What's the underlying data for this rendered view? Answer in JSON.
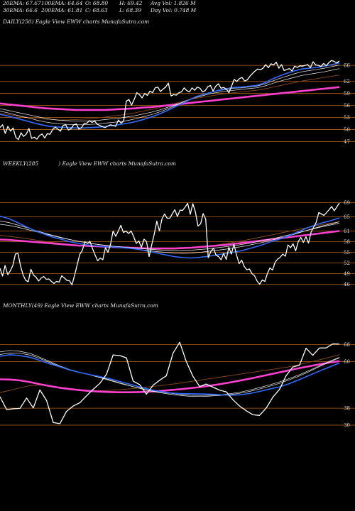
{
  "header": {
    "ema20": "20EMA: 67.67",
    "ema100": "100EMA: 64.64",
    "open": "O: 68.80",
    "high": "H: 69.42",
    "avg_vol": "Avg Vol: 1.826  M",
    "ema30": "30EMA: 66.6",
    "ema200": "200EMA: 61.81",
    "close": "C: 68.63",
    "low": "L: 68.39",
    "day_vol": "Day Vol: 0.748 M"
  },
  "panels": {
    "daily": "DAILY(250) Eagle   View  EWW charts MunafaSutra.com",
    "weekly_a": "WEEKLY(285",
    "weekly_b": ") Eagle   View  EWW charts MunafaSutra.com",
    "monthly": "MONTHLY(49) Eagle   View  EWW charts MunafaSutra.com"
  },
  "colors": {
    "background": "#000000",
    "price": "#ffffff",
    "ema_fast": "#2f6bff",
    "ema_slow": "#ff3fd0",
    "ema_white": "#f0f0f0",
    "ema_brown": "#8b4a1c",
    "gridline": "#b5651d"
  },
  "chart_data": [
    {
      "type": "line",
      "name": "daily",
      "yticks": [
        66,
        62,
        59,
        56,
        53,
        50,
        47
      ],
      "ylim": [
        45.5,
        68.5
      ],
      "series": [
        {
          "name": "price",
          "values": [
            50.5,
            51.2,
            49.0,
            50.8,
            49.6,
            50.4,
            48.1,
            47.5,
            49.2,
            48.3,
            48.9,
            50.3,
            47.8,
            48.1,
            47.6,
            48.5,
            48.9,
            47.9,
            49.0,
            48.8,
            50.0,
            50.6,
            50.1,
            49.6,
            51.0,
            51.2,
            49.9,
            50.2,
            51.2,
            51.4,
            50.1,
            50.5,
            51.5,
            51.6,
            52.2,
            51.8,
            52.1,
            51.3,
            51.0,
            50.7,
            50.5,
            50.9,
            51.2,
            51.0,
            50.8,
            52.4,
            51.6,
            52.1,
            57.1,
            57.5,
            56.1,
            57.5,
            59.2,
            58.7,
            57.9,
            59.0,
            58.5,
            59.6,
            59.2,
            60.4,
            60.6,
            59.5,
            60.1,
            60.6,
            61.6,
            58.4,
            58.7,
            58.6,
            59.2,
            59.4,
            60.4,
            59.7,
            59.4,
            60.4,
            59.8,
            60.6,
            60.3,
            59.4,
            59.7,
            60.7,
            61.0,
            59.6,
            60.8,
            61.4,
            60.3,
            60.5,
            60.1,
            59.2,
            60.8,
            62.5,
            62.0,
            62.7,
            63.0,
            62.1,
            62.4,
            63.3,
            64.0,
            64.6,
            65.1,
            64.9,
            65.3,
            66.2,
            65.4,
            66.4,
            66.1,
            66.8,
            65.3,
            66.2,
            64.7,
            65.0,
            65.2,
            64.6,
            65.8,
            65.5,
            65.9,
            65.8,
            66.0,
            66.2,
            65.4,
            66.9,
            66.1,
            66.0,
            65.7,
            66.5,
            65.9,
            66.7,
            67.2,
            67.0,
            66.6,
            67.1
          ]
        },
        {
          "name": "ema_fast",
          "values": [
            53.8,
            53.4,
            52.9,
            52.4,
            51.9,
            51.4,
            51.0,
            50.7,
            50.6,
            50.5,
            50.4,
            50.4,
            50.5,
            50.6,
            50.8,
            51.0,
            51.3,
            51.6,
            52.0,
            52.5,
            53.1,
            53.8,
            54.6,
            55.5,
            56.4,
            57.3,
            58.2,
            58.8,
            59.3,
            59.8,
            60.2,
            60.5,
            60.6,
            60.8,
            61.0,
            61.6,
            62.5,
            63.3,
            64.0,
            64.6,
            65.1,
            65.3,
            65.5,
            65.8,
            66.2,
            66.6
          ]
        },
        {
          "name": "ema_white_1",
          "values": [
            54.6,
            54.2,
            53.7,
            53.2,
            52.8,
            52.3,
            51.9,
            51.6,
            51.4,
            51.3,
            51.2,
            51.2,
            51.3,
            51.4,
            51.6,
            51.8,
            52.0,
            52.3,
            52.7,
            53.2,
            53.7,
            54.3,
            55.0,
            55.8,
            56.6,
            57.4,
            58.2,
            58.8,
            59.3,
            59.7,
            60.0,
            60.3,
            60.4,
            60.6,
            60.8,
            61.3,
            62.0,
            62.7,
            63.3,
            63.9,
            64.4,
            64.7,
            65.0,
            65.3,
            65.7,
            66.1
          ]
        },
        {
          "name": "ema_white_2",
          "values": [
            55.2,
            54.8,
            54.4,
            54.0,
            53.6,
            53.2,
            52.8,
            52.5,
            52.3,
            52.2,
            52.1,
            52.1,
            52.2,
            52.3,
            52.5,
            52.7,
            52.9,
            53.2,
            53.5,
            53.9,
            54.3,
            54.8,
            55.4,
            56.0,
            56.7,
            57.4,
            58.0,
            58.5,
            59.0,
            59.3,
            59.6,
            59.8,
            60.0,
            60.2,
            60.4,
            60.8,
            61.4,
            62.0,
            62.5,
            63.0,
            63.5,
            63.8,
            64.1,
            64.4,
            64.8,
            65.2
          ]
        },
        {
          "name": "ema_brown",
          "values": [
            54.0,
            53.8,
            53.5,
            53.2,
            53.0,
            52.8,
            52.6,
            52.5,
            52.4,
            52.4,
            52.5,
            52.6,
            52.7,
            52.9,
            53.1,
            53.4,
            53.6,
            53.9,
            54.2,
            54.6,
            55.0,
            55.4,
            55.9,
            56.4,
            56.9,
            57.4,
            57.8,
            58.1,
            58.4,
            58.7,
            59.0,
            59.2,
            59.4,
            59.6,
            59.8,
            60.1,
            60.5,
            60.9,
            61.3,
            61.7,
            62.1,
            62.4,
            62.7,
            63.0,
            63.3,
            63.6
          ]
        },
        {
          "name": "ema_slow",
          "values": [
            56.5,
            56.3,
            56.1,
            55.9,
            55.7,
            55.5,
            55.3,
            55.2,
            55.1,
            55.0,
            54.9,
            54.9,
            54.9,
            54.9,
            54.9,
            55.0,
            55.1,
            55.2,
            55.3,
            55.5,
            55.6,
            55.8,
            56.0,
            56.2,
            56.4,
            56.6,
            56.8,
            57.0,
            57.2,
            57.4,
            57.6,
            57.8,
            58.0,
            58.2,
            58.4,
            58.6,
            58.8,
            59.0,
            59.2,
            59.4,
            59.6,
            59.8,
            60.0,
            60.2,
            60.4,
            60.6
          ]
        }
      ]
    },
    {
      "type": "line",
      "name": "weekly",
      "yticks": [
        69,
        65,
        61,
        58,
        55,
        52,
        49,
        46
      ],
      "ylim": [
        44.5,
        70.5
      ],
      "series": [
        {
          "name": "price",
          "values": [
            50.5,
            48.3,
            51.3,
            48.7,
            49.8,
            51.3,
            54.5,
            54.7,
            51.1,
            48.6,
            47.1,
            46.7,
            50.2,
            48.6,
            48.0,
            46.9,
            47.7,
            48.2,
            47.4,
            47.5,
            46.8,
            46.2,
            46.8,
            46.6,
            48.4,
            47.8,
            47.1,
            47.0,
            45.8,
            48.5,
            51.4,
            54.4,
            55.5,
            58.0,
            57.5,
            58.1,
            56.0,
            54.2,
            52.6,
            53.4,
            52.9,
            56.3,
            55.0,
            57.3,
            61.0,
            59.5,
            61.0,
            62.6,
            60.6,
            61.0,
            60.3,
            61.0,
            59.4,
            57.5,
            58.2,
            56.4,
            58.7,
            58.0,
            53.8,
            57.1,
            60.2,
            63.8,
            61.0,
            64.4,
            65.8,
            64.6,
            64.6,
            65.8,
            67.0,
            65.1,
            66.9,
            66.8,
            67.7,
            68.8,
            65.7,
            68.7,
            66.4,
            62.4,
            63.0,
            65.9,
            64.4,
            53.5,
            55.2,
            56.2,
            54.2,
            53.8,
            52.9,
            54.7,
            53.0,
            56.4,
            54.5,
            57.3,
            54.2,
            51.8,
            52.8,
            51.0,
            50.1,
            50.3,
            49.0,
            48.4,
            46.9,
            46.0,
            47.2,
            46.8,
            49.0,
            50.6,
            50.0,
            52.2,
            53.1,
            53.6,
            54.5,
            53.9,
            57.1,
            56.3,
            57.4,
            55.4,
            58.0,
            59.2,
            57.8,
            59.4,
            57.6,
            60.7,
            62.1,
            63.5,
            66.2,
            65.8,
            65.4,
            66.2,
            67.0,
            67.9,
            66.7,
            67.8,
            68.9
          ]
        },
        {
          "name": "ema_fast",
          "values": [
            65.2,
            64.5,
            63.4,
            62.2,
            61.1,
            60.2,
            59.3,
            58.7,
            58.0,
            57.5,
            57.1,
            56.8,
            56.6,
            56.5,
            56.3,
            56.1,
            55.8,
            55.3,
            54.8,
            54.3,
            53.8,
            53.5,
            53.4,
            53.6,
            53.9,
            54.3,
            54.7,
            55.1,
            55.6,
            56.3,
            57.0,
            57.9,
            58.6,
            59.5,
            60.5,
            61.6,
            62.5,
            63.3,
            63.9,
            64.7
          ]
        },
        {
          "name": "ema_white_1",
          "values": [
            63.8,
            63.4,
            62.7,
            62.0,
            61.2,
            60.5,
            59.8,
            59.2,
            58.6,
            58.1,
            57.7,
            57.3,
            57.0,
            56.7,
            56.4,
            56.1,
            55.8,
            55.5,
            55.2,
            55.0,
            54.8,
            54.7,
            54.8,
            55.0,
            55.3,
            55.6,
            55.9,
            56.3,
            56.7,
            57.2,
            57.7,
            58.3,
            58.9,
            59.5,
            60.2,
            61.0,
            61.7,
            62.4,
            63.0,
            63.6
          ]
        },
        {
          "name": "ema_white_2",
          "values": [
            62.9,
            62.6,
            62.1,
            61.5,
            60.9,
            60.3,
            59.7,
            59.1,
            58.6,
            58.1,
            57.7,
            57.3,
            57.0,
            56.7,
            56.5,
            56.3,
            56.1,
            55.9,
            55.7,
            55.6,
            55.5,
            55.5,
            55.6,
            55.8,
            56.0,
            56.3,
            56.6,
            56.9,
            57.3,
            57.7,
            58.2,
            58.7,
            59.2,
            59.8,
            60.4,
            61.0,
            61.6,
            62.2,
            62.7,
            63.2
          ]
        },
        {
          "name": "ema_brown",
          "values": [
            59.8,
            59.5,
            59.2,
            58.9,
            58.5,
            58.1,
            57.8,
            57.5,
            57.2,
            57.0,
            56.8,
            56.6,
            56.5,
            56.4,
            56.3,
            56.2,
            56.1,
            56.0,
            55.9,
            55.9,
            55.9,
            56.0,
            56.2,
            56.5,
            56.8,
            57.1,
            57.5,
            57.9,
            58.3,
            58.8,
            59.3,
            59.8,
            60.3,
            60.8,
            61.3,
            61.8,
            62.3,
            62.8,
            63.2,
            63.6
          ]
        },
        {
          "name": "ema_slow",
          "values": [
            58.6,
            58.5,
            58.3,
            58.1,
            57.9,
            57.7,
            57.5,
            57.3,
            57.1,
            56.9,
            56.8,
            56.7,
            56.6,
            56.5,
            56.4,
            56.3,
            56.2,
            56.1,
            56.1,
            56.1,
            56.1,
            56.2,
            56.3,
            56.5,
            56.7,
            56.9,
            57.1,
            57.4,
            57.7,
            58.0,
            58.3,
            58.6,
            58.9,
            59.2,
            59.5,
            59.8,
            60.1,
            60.4,
            60.7,
            61.0
          ]
        }
      ]
    },
    {
      "type": "line",
      "name": "monthly",
      "yticks": [
        68,
        60,
        38,
        30
      ],
      "ylim": [
        27,
        70.5
      ],
      "series": [
        {
          "name": "price",
          "values": [
            43.4,
            37.3,
            37.7,
            37.9,
            42.8,
            38.1,
            46.6,
            41.6,
            31.2,
            30.7,
            36.5,
            39.0,
            40.6,
            43.8,
            46.9,
            49.7,
            54.0,
            63.1,
            62.8,
            61.7,
            50.8,
            49.1,
            44.6,
            48.8,
            51.2,
            53.3,
            63.9,
            69.1,
            60.0,
            53.0,
            48.2,
            49.4,
            47.9,
            46.5,
            45.7,
            42.0,
            39.0,
            36.8,
            34.9,
            34.6,
            38.0,
            43.2,
            46.8,
            53.3,
            57.4,
            58.3,
            66.3,
            62.9,
            66.4,
            66.4,
            68.3,
            68.2
          ]
        },
        {
          "name": "ema_fast",
          "values": [
            62.5,
            63.2,
            62.8,
            62.0,
            60.5,
            58.9,
            57.5,
            56.0,
            54.8,
            53.8,
            52.9,
            51.9,
            50.6,
            49.3,
            48.0,
            46.8,
            45.9,
            45.2,
            44.9,
            44.8,
            44.7,
            44.6,
            44.4,
            44.1,
            44.3,
            44.9,
            45.9,
            47.0,
            48.0,
            49.6,
            51.5,
            53.5,
            55.5,
            57.4,
            59.3
          ]
        },
        {
          "name": "ema_white_1",
          "values": [
            64.5,
            65.2,
            64.8,
            63.8,
            62.0,
            60.0,
            57.9,
            56.2,
            54.9,
            53.8,
            52.6,
            51.4,
            50.0,
            48.6,
            47.3,
            46.2,
            45.3,
            44.6,
            44.0,
            43.6,
            43.5,
            43.7,
            44.0,
            44.4,
            45.0,
            45.9,
            47.0,
            48.3,
            49.7,
            51.4,
            53.2,
            55.3,
            57.6,
            59.7,
            61.7
          ]
        },
        {
          "name": "ema_white_2",
          "values": [
            63.3,
            64.0,
            63.9,
            63.0,
            61.4,
            59.5,
            57.6,
            56.0,
            54.8,
            53.7,
            52.4,
            51.1,
            49.7,
            48.5,
            47.4,
            46.3,
            45.6,
            45.0,
            44.5,
            44.1,
            44.0,
            44.1,
            44.3,
            44.8,
            45.5,
            46.5,
            47.7,
            49.0,
            50.4,
            52.0,
            53.8,
            55.8,
            58.0,
            60.1,
            62.0
          ]
        },
        {
          "name": "ema_brown",
          "values": [
            45.4,
            46.4,
            47.6,
            48.6,
            48.9,
            48.5,
            47.8,
            47.1,
            46.6,
            46.3,
            46.2,
            46.4,
            46.7,
            47.1,
            47.6,
            48.1,
            48.6,
            49.2,
            49.8,
            50.5,
            51.2,
            51.9,
            52.6,
            53.3,
            54.0,
            54.7,
            55.4,
            56.1,
            56.8,
            57.6,
            58.6,
            59.7,
            60.8,
            62.0,
            63.2
          ]
        },
        {
          "name": "ema_slow",
          "values": [
            51.6,
            51.5,
            51.1,
            50.3,
            49.3,
            48.4,
            47.6,
            47.0,
            46.5,
            46.1,
            45.8,
            45.6,
            45.5,
            45.5,
            45.6,
            45.8,
            46.1,
            46.5,
            46.9,
            47.4,
            47.9,
            48.6,
            49.3,
            50.1,
            51.0,
            51.9,
            52.9,
            53.9,
            54.9,
            55.9,
            56.9,
            57.8,
            58.7,
            59.5,
            60.2
          ]
        }
      ]
    }
  ]
}
